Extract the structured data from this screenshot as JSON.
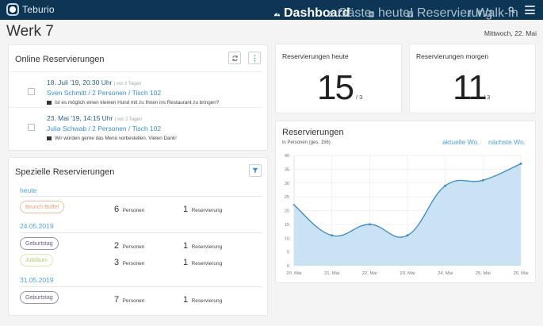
{
  "app": {
    "brand": "Teburio"
  },
  "nav": {
    "items": [
      {
        "label": "Dashboard",
        "icon": "dashboard-icon",
        "active": true
      },
      {
        "label": "Gäste",
        "icon": "users-icon",
        "active": false
      },
      {
        "label": "heute!",
        "icon": "calendar-today-icon",
        "active": false
      },
      {
        "label": "Reservierung",
        "icon": "calendar-plus-icon",
        "active": false
      },
      {
        "label": "Walk-in",
        "icon": "walking-icon",
        "active": false
      }
    ],
    "search_icon": "search-icon",
    "menu_icon": "hamburger-icon"
  },
  "page": {
    "title": "Werk 7",
    "date": "Mittwoch, 22. Mai"
  },
  "online_reservations": {
    "title": "Online Reservierungen",
    "refresh_icon": "refresh-icon",
    "more_icon": "more-vertical-icon",
    "items": [
      {
        "datetime": "18. Juli '19, 20:30 Uhr",
        "ago": "| vor 2 Tagen",
        "guest": "Sven Schmitt / 2 Personen / Tisch 102",
        "message": "Ist es möglich einen kleinen Hund mit zu Ihnen ins Restaurant zu bringen?"
      },
      {
        "datetime": "23. Mai '19, 14:15 Uhr",
        "ago": "| vor 2 Tagen",
        "guest": "Julia Schwab / 2 Personen / Tisch 102",
        "message": "Wir würden gerne das Menü vorbestellen. Vielen Dank!"
      }
    ]
  },
  "special_reservations": {
    "title": "Spezielle Reservierungen",
    "filter_icon": "filter-icon",
    "groups": [
      {
        "label": "heute",
        "rows": [
          {
            "tag": "Brunch Buffet",
            "tag_color": "#e8a27c",
            "persons": "6",
            "persons_unit": "Personen",
            "reservations": "1",
            "reservations_unit": "Reservierung"
          }
        ]
      },
      {
        "label": "24.05.2019",
        "rows": [
          {
            "tag": "Geburtstag",
            "tag_color": "#7a6e8a",
            "persons": "2",
            "persons_unit": "Personen",
            "reservations": "1",
            "reservations_unit": "Reservierung"
          },
          {
            "tag": "Jubiläum",
            "tag_color": "#a8d16b",
            "persons": "3",
            "persons_unit": "Personen",
            "reservations": "1",
            "reservations_unit": "Reservierung"
          }
        ]
      },
      {
        "label": "31.05.2019",
        "rows": [
          {
            "tag": "Geburtstag",
            "tag_color": "#7a6e8a",
            "persons": "7",
            "persons_unit": "Personen",
            "reservations": "1",
            "reservations_unit": "Reservierung"
          }
        ]
      }
    ]
  },
  "stats": {
    "today": {
      "label": "Reservierungen heute",
      "value": "15",
      "sub": "/ 3"
    },
    "tomorrow": {
      "label": "Reservierungen morgen",
      "value": "11",
      "sub": "/ 3"
    }
  },
  "chart": {
    "title": "Reservierungen",
    "subtitle": "in Personen (ges. 156)",
    "link_current": "aktuelle Wo.",
    "link_next": "nächste Wo."
  },
  "chart_data": {
    "type": "area",
    "title": "Reservierungen",
    "subtitle": "in Personen (ges. 156)",
    "categories": [
      "20. Mai",
      "21. Mai",
      "22. Mai",
      "23. Mai",
      "24. Mai",
      "25. Mai",
      "26. Mai"
    ],
    "series": [
      {
        "name": "Personen",
        "values": [
          22,
          11,
          15,
          11,
          29,
          31,
          37
        ]
      }
    ],
    "xlabel": "",
    "ylabel": "",
    "ylim": [
      0,
      40
    ],
    "yticks": [
      0,
      5,
      10,
      15,
      20,
      25,
      30,
      35,
      40
    ],
    "grid": true,
    "legend": "none",
    "colors": {
      "line": "#4a8fc0",
      "fill": "#c3e0f4"
    }
  },
  "colors": {
    "navbar": "#0c3654",
    "accent": "#4fa3d8",
    "link": "#3a8fd0"
  }
}
